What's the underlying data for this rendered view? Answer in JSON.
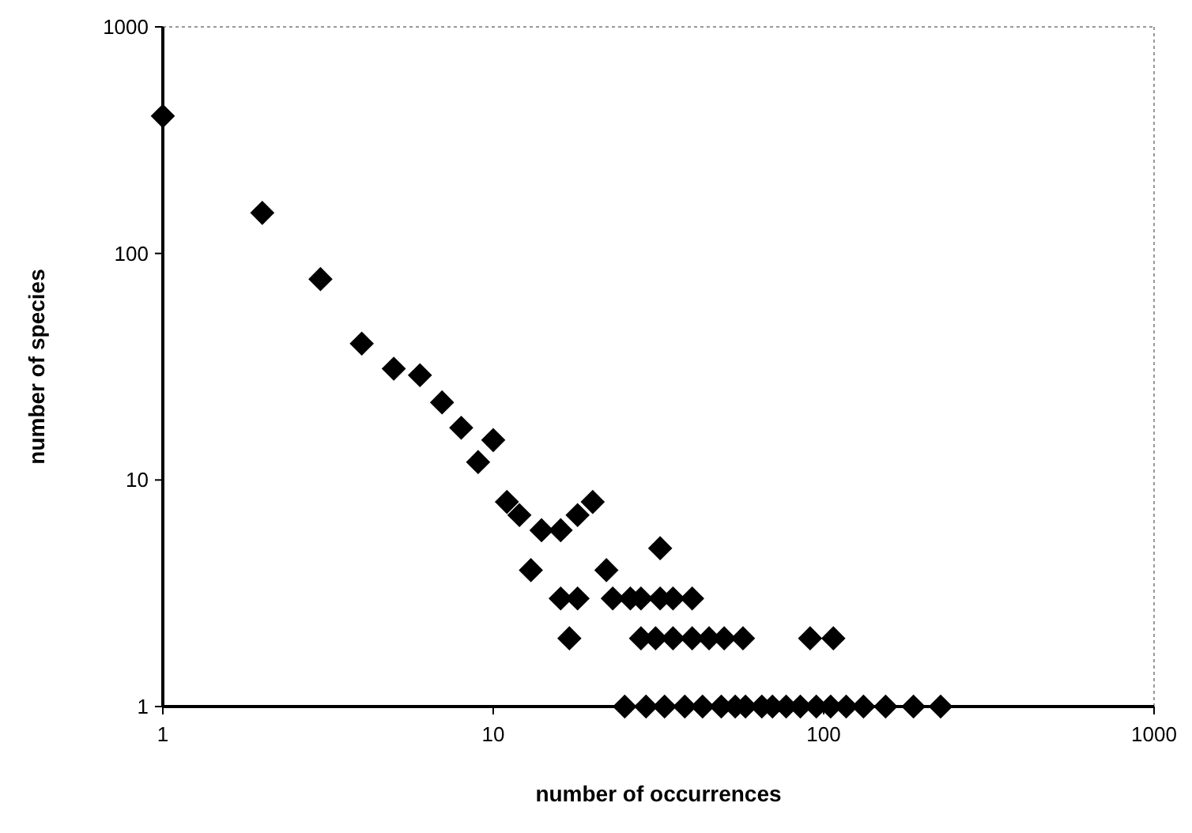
{
  "chart_data": {
    "type": "scatter",
    "xlabel": "number of occurrences",
    "ylabel": "number of species",
    "log": "xy",
    "xlim": [
      1,
      1000
    ],
    "ylim": [
      1,
      1000
    ],
    "xticks": [
      1,
      10,
      100,
      1000
    ],
    "yticks": [
      1,
      10,
      100,
      1000
    ],
    "grid": false,
    "marker": "diamond",
    "series": [
      {
        "color": "#000000",
        "x": [
          1,
          2,
          3,
          4,
          5,
          6,
          7,
          8,
          9,
          10,
          11,
          12,
          14,
          16,
          18,
          20,
          13,
          22,
          32,
          16,
          18,
          23,
          26,
          28,
          32,
          35,
          40,
          17,
          28,
          31,
          35,
          40,
          45,
          50,
          57,
          91,
          107,
          25,
          29,
          33,
          38,
          43,
          49,
          54,
          58,
          65,
          70,
          77,
          85,
          95,
          105,
          117,
          132,
          154,
          187,
          226
        ],
        "values": [
          404,
          151,
          77,
          40,
          31,
          29,
          22,
          17,
          12,
          15,
          8,
          7,
          6,
          6,
          7,
          8,
          4,
          4,
          5,
          3,
          3,
          3,
          3,
          3,
          3,
          3,
          3,
          2,
          2,
          2,
          2,
          2,
          2,
          2,
          2,
          2,
          2,
          1,
          1,
          1,
          1,
          1,
          1,
          1,
          1,
          1,
          1,
          1,
          1,
          1,
          1,
          1,
          1,
          1,
          1,
          1
        ]
      }
    ]
  }
}
